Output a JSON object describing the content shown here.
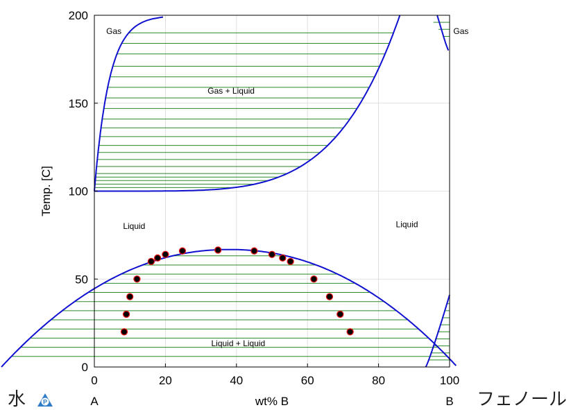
{
  "chart_data": {
    "type": "phase-diagram",
    "xlabel": "wt%  B",
    "ylabel": "Temp.  [C]",
    "xlim": [
      0,
      100
    ],
    "ylim": [
      0,
      200
    ],
    "xticks": [
      0,
      20,
      40,
      60,
      80,
      100
    ],
    "yticks": [
      0,
      50,
      100,
      150,
      200
    ],
    "grid": true,
    "component_labels": {
      "left": "A",
      "right": "B"
    },
    "regions": [
      {
        "text": "Gas",
        "x": 5.5,
        "y": 191
      },
      {
        "text": "Gas + Liquid",
        "x": 38.5,
        "y": 157
      },
      {
        "text": "Gas",
        "x": 103.2,
        "y": 191
      },
      {
        "text": "Liquid",
        "x": 11.2,
        "y": 80
      },
      {
        "text": "Liquid",
        "x": 88,
        "y": 81
      },
      {
        "text": "Liquid + Liquid",
        "x": 40.5,
        "y": 13.5
      }
    ],
    "vle_azeotrope": {
      "x": 86,
      "T": 200
    },
    "lle_critical_point": {
      "x": 38,
      "T": 66.8
    },
    "lle_measured_points": [
      {
        "x": 8.4,
        "T": 20
      },
      {
        "x": 9.0,
        "T": 30
      },
      {
        "x": 10.0,
        "T": 40
      },
      {
        "x": 12.0,
        "T": 50
      },
      {
        "x": 16.0,
        "T": 60
      },
      {
        "x": 17.8,
        "T": 62
      },
      {
        "x": 20.0,
        "T": 64
      },
      {
        "x": 24.8,
        "T": 66
      },
      {
        "x": 34.8,
        "T": 66.5
      },
      {
        "x": 45.0,
        "T": 66
      },
      {
        "x": 50.0,
        "T": 64
      },
      {
        "x": 53.0,
        "T": 62
      },
      {
        "x": 55.2,
        "T": 60
      },
      {
        "x": 61.8,
        "T": 50
      },
      {
        "x": 66.2,
        "T": 40
      },
      {
        "x": 69.2,
        "T": 30
      },
      {
        "x": 72.0,
        "T": 20
      }
    ],
    "colors": {
      "boundary": "#1010d0",
      "tie_line": "#2a8a2a",
      "point_fill": "#000000",
      "point_edge": "#e01010",
      "grid": "#d8d8d8"
    }
  },
  "compounds": {
    "left": "水",
    "right": "フェノール"
  }
}
